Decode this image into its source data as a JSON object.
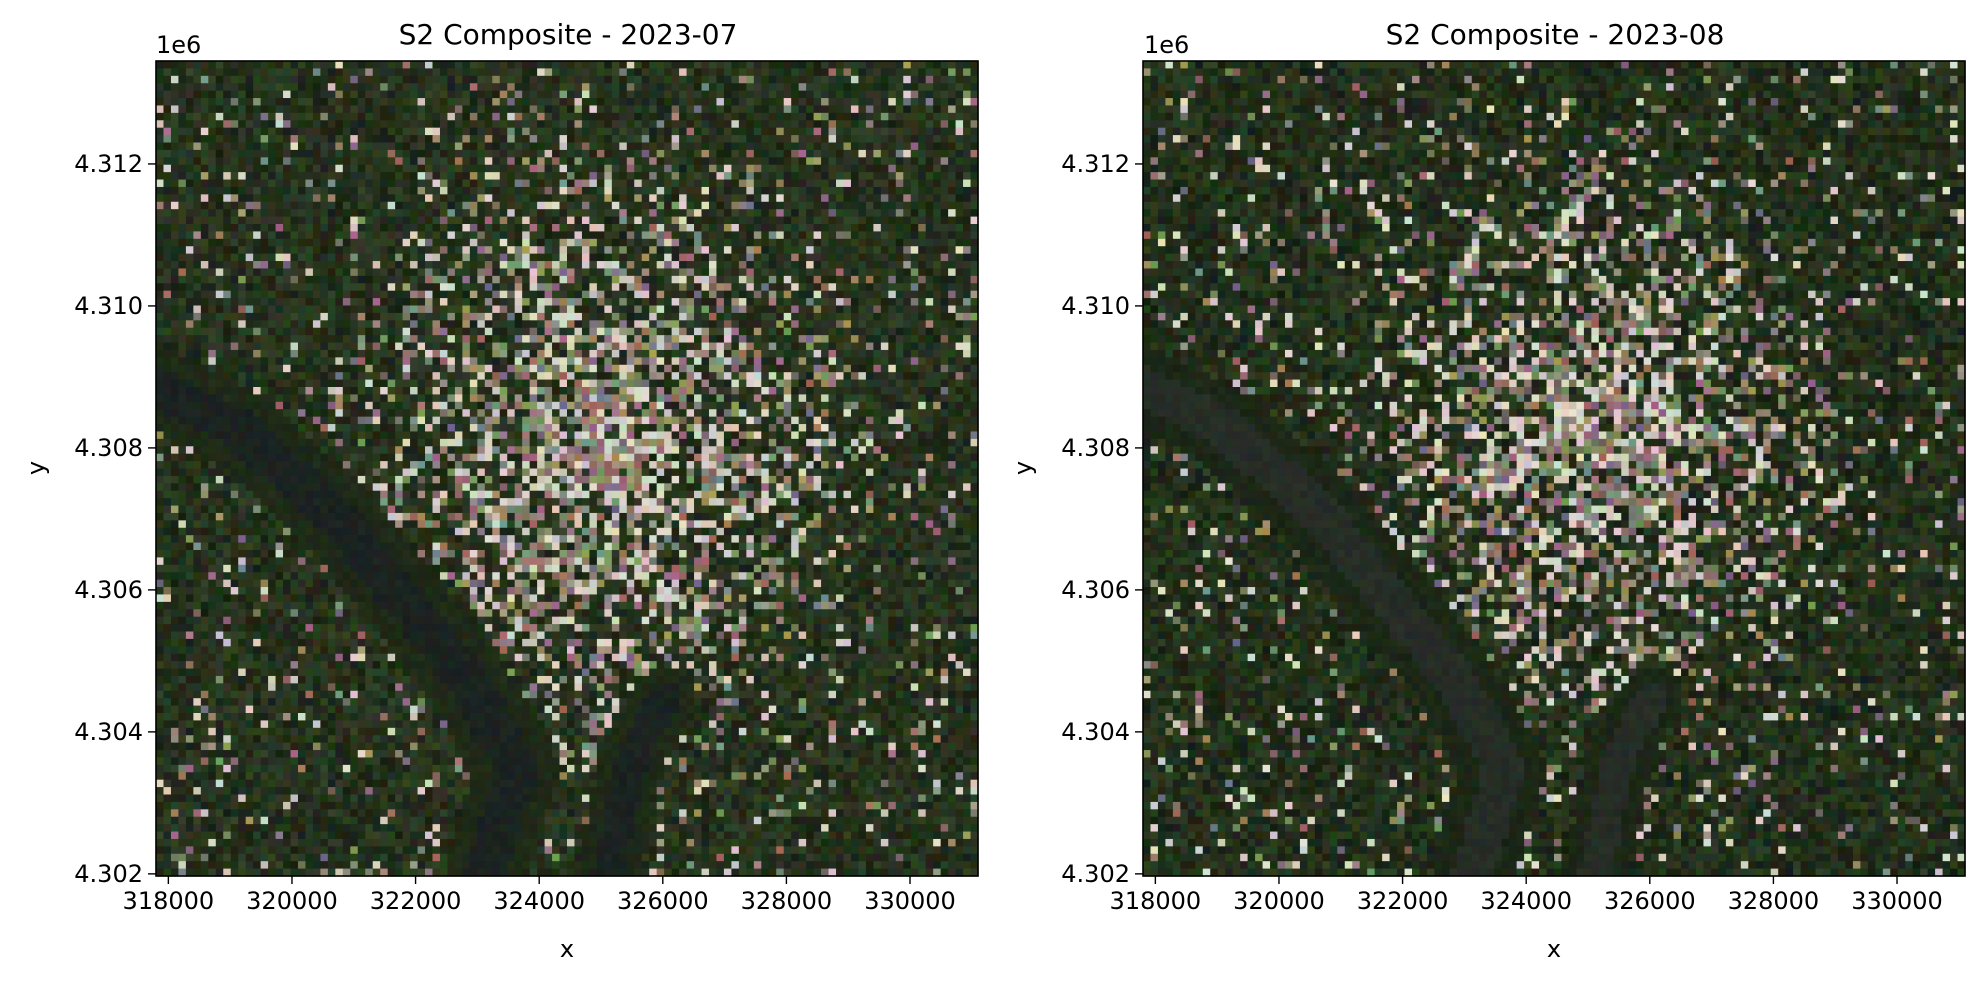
{
  "chart_data": [
    {
      "type": "heatmap",
      "title": "S2 Composite - 2023-07",
      "xlabel": "x",
      "ylabel": "y",
      "y_offset_label": "1e6",
      "xlim": [
        317800,
        331100
      ],
      "ylim": [
        4.30197,
        4.31345
      ],
      "xticks": [
        318000,
        320000,
        322000,
        324000,
        326000,
        328000,
        330000
      ],
      "xtick_labels": [
        "318000",
        "320000",
        "322000",
        "324000",
        "326000",
        "328000",
        "330000"
      ],
      "yticks": [
        4.302,
        4.304,
        4.306,
        4.308,
        4.31,
        4.312
      ],
      "ytick_labels": [
        "4.302",
        "4.304",
        "4.306",
        "4.308",
        "4.310",
        "4.312"
      ],
      "grid": false,
      "legend": "none",
      "image": "true-color RGB Sentinel-2 composite (urban area with river, vegetation)",
      "seed": 11,
      "colors": {
        "dark_veg": "#1f2a17",
        "veg": "#2c3a22",
        "water": "#1b2320",
        "urban": "#8a8070",
        "bright": "#e9e3d6"
      }
    },
    {
      "type": "heatmap",
      "title": "S2 Composite - 2023-08",
      "xlabel": "x",
      "ylabel": "y",
      "y_offset_label": "1e6",
      "xlim": [
        317800,
        331100
      ],
      "ylim": [
        4.30197,
        4.31345
      ],
      "xticks": [
        318000,
        320000,
        322000,
        324000,
        326000,
        328000,
        330000
      ],
      "xtick_labels": [
        "318000",
        "320000",
        "322000",
        "324000",
        "326000",
        "328000",
        "330000"
      ],
      "yticks": [
        4.302,
        4.304,
        4.306,
        4.308,
        4.31,
        4.312
      ],
      "ytick_labels": [
        "4.302",
        "4.304",
        "4.306",
        "4.308",
        "4.310",
        "4.312"
      ],
      "grid": false,
      "legend": "none",
      "image": "true-color RGB Sentinel-2 composite (urban area with river, vegetation)",
      "seed": 29,
      "colors": {
        "dark_veg": "#1c2716",
        "veg": "#29381f",
        "water": "#262d26",
        "urban": "#857c6c",
        "bright": "#ece6d9"
      }
    }
  ]
}
